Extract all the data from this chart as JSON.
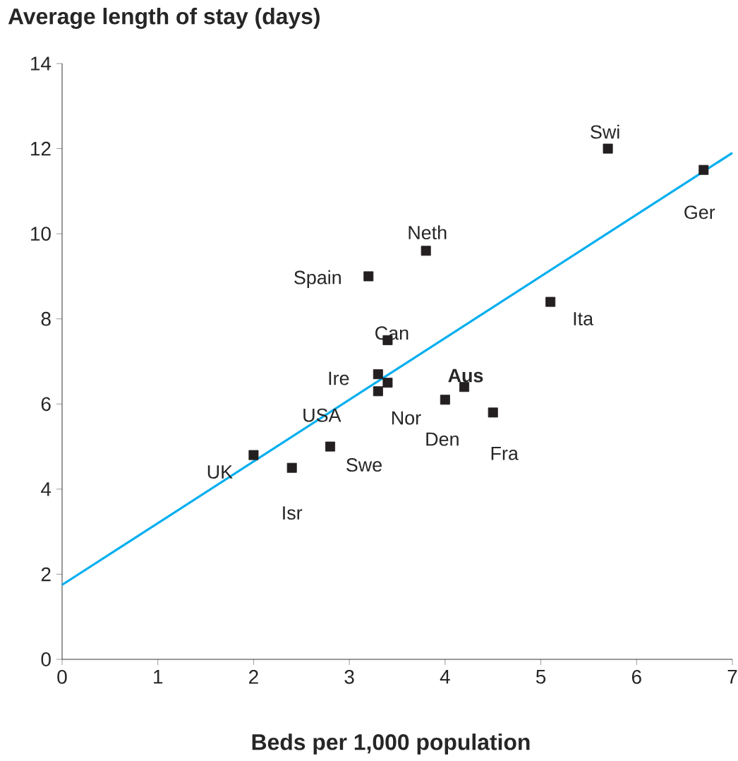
{
  "chart_data": {
    "type": "scatter",
    "ylabel": "Average length of stay (days)",
    "xlabel": "Beds per 1,000 population",
    "xlim": [
      0,
      7
    ],
    "ylim": [
      0,
      14
    ],
    "xticks": [
      0,
      1,
      2,
      3,
      4,
      5,
      6,
      7
    ],
    "yticks": [
      0,
      2,
      4,
      6,
      8,
      10,
      12,
      14
    ],
    "marker": "square",
    "series": [
      {
        "color": "#231f20",
        "x": [
          2.0,
          2.4,
          2.8,
          3.2,
          3.4,
          3.3,
          3.3,
          3.4,
          3.8,
          4.0,
          4.2,
          4.5,
          5.1,
          5.7,
          6.7
        ],
        "values": [
          4.8,
          4.5,
          5.0,
          9.0,
          7.5,
          6.7,
          6.3,
          6.5,
          9.6,
          6.1,
          6.4,
          5.8,
          8.4,
          12.0,
          11.5
        ]
      },
      {
        "type": "line",
        "marker": "none",
        "color": "#00aeef",
        "x": [
          0,
          7
        ],
        "values": [
          1.75,
          11.9
        ]
      }
    ],
    "annotations": [
      {
        "text": "UK",
        "x": 2.0,
        "y": 4.8
      },
      {
        "text": "Isr",
        "x": 2.4,
        "y": 4.5
      },
      {
        "text": "Swe",
        "x": 2.8,
        "y": 5.0
      },
      {
        "text": "Spain",
        "x": 3.2,
        "y": 9.0
      },
      {
        "text": "Can",
        "x": 3.4,
        "y": 7.5
      },
      {
        "text": "Ire",
        "x": 3.3,
        "y": 6.7
      },
      {
        "text": "USA",
        "x": 3.3,
        "y": 6.3
      },
      {
        "text": "Nor",
        "x": 3.4,
        "y": 6.5
      },
      {
        "text": "Neth",
        "x": 3.8,
        "y": 9.6
      },
      {
        "text": "Den",
        "x": 4.0,
        "y": 6.1
      },
      {
        "text": "**Aus**",
        "x": 4.2,
        "y": 6.4
      },
      {
        "text": "Fra",
        "x": 4.5,
        "y": 5.8
      },
      {
        "text": "Ita",
        "x": 5.1,
        "y": 8.4
      },
      {
        "text": "Swi",
        "x": 5.7,
        "y": 12.0
      },
      {
        "text": "Ger",
        "x": 6.7,
        "y": 11.5
      }
    ]
  }
}
